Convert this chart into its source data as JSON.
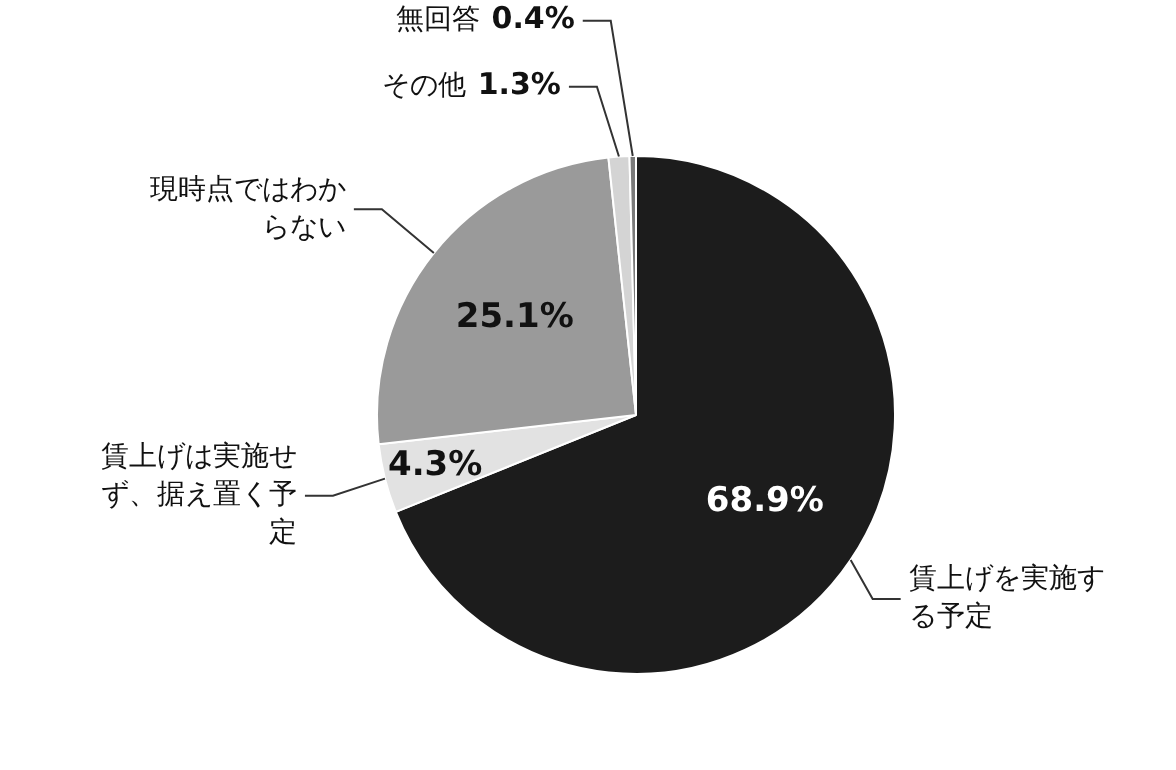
{
  "chart_data": {
    "type": "pie",
    "categories": [
      "賃上げを実施する予定",
      "賃上げは実施せず、据え置く予定",
      "現時点ではわからない",
      "その他",
      "無回答"
    ],
    "values": [
      68.9,
      4.3,
      25.1,
      1.3,
      0.4
    ],
    "colors": [
      "#1c1c1c",
      "#e2e2e2",
      "#9a9a9a",
      "#d4d4d4",
      "#7a7a7a"
    ],
    "value_labels": [
      "68.9%",
      "4.3%",
      "25.1%",
      "1.3%",
      "0.4%"
    ],
    "legend": false
  }
}
